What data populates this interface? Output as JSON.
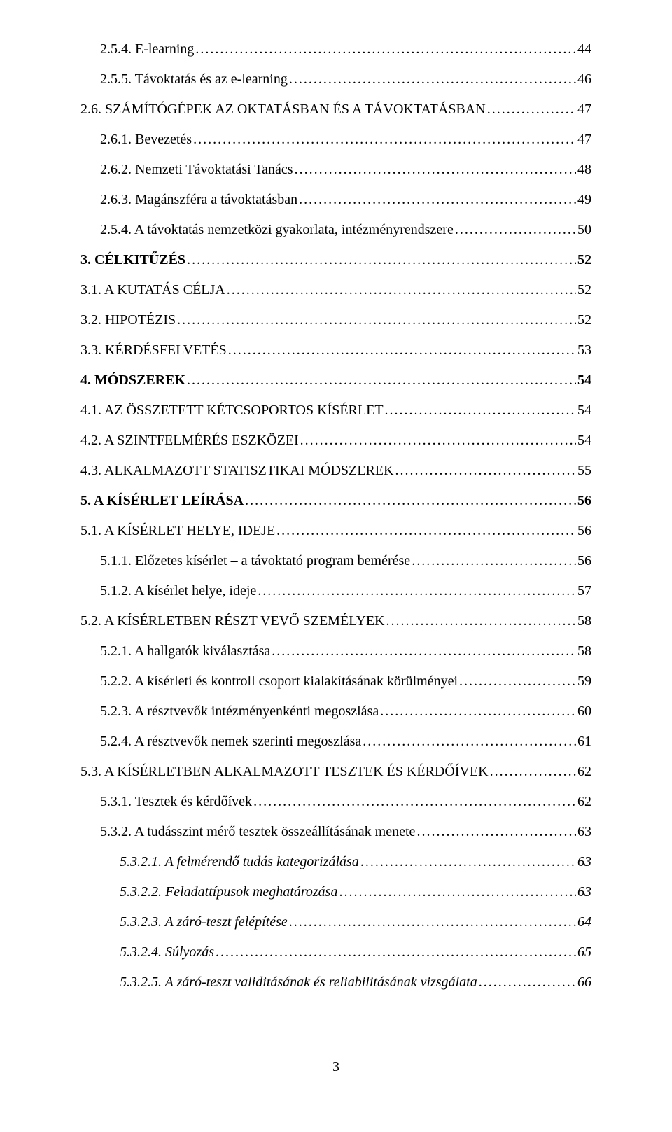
{
  "entries": [
    {
      "label": "2.5.4. E-learning",
      "page": "44",
      "indent": 1,
      "style": ""
    },
    {
      "label": "2.5.5. Távoktatás és az e-learning",
      "page": "46",
      "indent": 1,
      "style": ""
    },
    {
      "label": "2.6. SZÁMÍTÓGÉPEK AZ OKTATÁSBAN ÉS A TÁVOKTATÁSBAN",
      "page": "47",
      "indent": 0,
      "style": ""
    },
    {
      "label": "2.6.1. Bevezetés",
      "page": "47",
      "indent": 1,
      "style": ""
    },
    {
      "label": "2.6.2. Nemzeti Távoktatási Tanács",
      "page": "48",
      "indent": 1,
      "style": ""
    },
    {
      "label": "2.6.3. Magánszféra a távoktatásban",
      "page": "49",
      "indent": 1,
      "style": ""
    },
    {
      "label": "2.5.4. A távoktatás nemzetközi gyakorlata, intézményrendszere",
      "page": "50",
      "indent": 1,
      "style": ""
    },
    {
      "label": "3. CÉLKITŰZÉS",
      "page": "52",
      "indent": 0,
      "style": "bold"
    },
    {
      "label": "3.1. A KUTATÁS CÉLJA",
      "page": "52",
      "indent": 0,
      "style": ""
    },
    {
      "label": "3.2. HIPOTÉZIS",
      "page": "52",
      "indent": 0,
      "style": ""
    },
    {
      "label": "3.3. KÉRDÉSFELVETÉS",
      "page": "53",
      "indent": 0,
      "style": ""
    },
    {
      "label": "4. MÓDSZEREK",
      "page": "54",
      "indent": 0,
      "style": "bold"
    },
    {
      "label": "4.1. AZ ÖSSZETETT KÉTCSOPORTOS KÍSÉRLET",
      "page": "54",
      "indent": 0,
      "style": ""
    },
    {
      "label": "4.2. A SZINTFELMÉRÉS ESZKÖZEI",
      "page": "54",
      "indent": 0,
      "style": ""
    },
    {
      "label": "4.3. ALKALMAZOTT STATISZTIKAI MÓDSZEREK",
      "page": "55",
      "indent": 0,
      "style": ""
    },
    {
      "label": "5. A KÍSÉRLET LEÍRÁSA",
      "page": "56",
      "indent": 0,
      "style": "bold"
    },
    {
      "label": "5.1. A KÍSÉRLET HELYE, IDEJE",
      "page": "56",
      "indent": 0,
      "style": ""
    },
    {
      "label": "5.1.1. Előzetes kísérlet – a távoktató program bemérése",
      "page": "56",
      "indent": 1,
      "style": ""
    },
    {
      "label": "5.1.2. A kísérlet helye, ideje",
      "page": "57",
      "indent": 1,
      "style": ""
    },
    {
      "label": "5.2. A KÍSÉRLETBEN RÉSZT VEVŐ SZEMÉLYEK",
      "page": "58",
      "indent": 0,
      "style": ""
    },
    {
      "label": "5.2.1. A hallgatók kiválasztása",
      "page": "58",
      "indent": 1,
      "style": ""
    },
    {
      "label": "5.2.2. A kísérleti és kontroll csoport kialakításának körülményei",
      "page": "59",
      "indent": 1,
      "style": ""
    },
    {
      "label": "5.2.3. A résztvevők intézményenkénti megoszlása",
      "page": "60",
      "indent": 1,
      "style": ""
    },
    {
      "label": "5.2.4. A résztvevők nemek szerinti megoszlása",
      "page": "61",
      "indent": 1,
      "style": ""
    },
    {
      "label": "5.3. A KÍSÉRLETBEN ALKALMAZOTT TESZTEK ÉS KÉRDŐÍVEK",
      "page": "62",
      "indent": 0,
      "style": ""
    },
    {
      "label": "5.3.1. Tesztek és kérdőívek",
      "page": "62",
      "indent": 1,
      "style": ""
    },
    {
      "label": "5.3.2. A tudásszint mérő tesztek összeállításának menete",
      "page": "63",
      "indent": 1,
      "style": ""
    },
    {
      "label": "5.3.2.1. A felmérendő tudás kategorizálása",
      "page": "63",
      "indent": 2,
      "style": "italic"
    },
    {
      "label": "5.3.2.2. Feladattípusok meghatározása",
      "page": "63",
      "indent": 2,
      "style": "italic"
    },
    {
      "label": "5.3.2.3. A záró-teszt felépítése",
      "page": "64",
      "indent": 2,
      "style": "italic"
    },
    {
      "label": "5.3.2.4. Súlyozás",
      "page": "65",
      "indent": 2,
      "style": "italic"
    },
    {
      "label": "5.3.2.5. A záró-teszt validitásának és reliabilitásának vizsgálata",
      "page": "66",
      "indent": 2,
      "style": "italic"
    }
  ],
  "pageNumber": "3"
}
